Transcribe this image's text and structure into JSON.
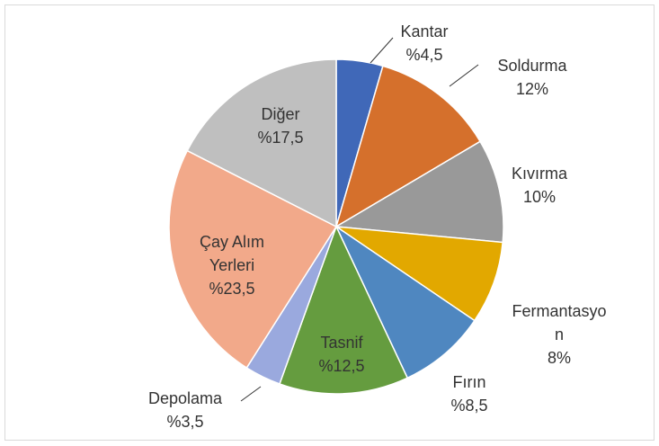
{
  "chart_data": {
    "type": "pie",
    "categories": [
      "Kantar",
      "Soldurma",
      "Kıvırma",
      "Fermantasyon",
      "Fırın",
      "Tasnif",
      "Depolama",
      "Çay Alım Yerleri",
      "Diğer"
    ],
    "values": [
      4.5,
      12,
      10,
      8,
      8.5,
      12.5,
      3.5,
      23.5,
      17.5
    ],
    "value_labels": [
      "%4,5",
      "12%",
      "10%",
      "8%",
      "%8,5",
      "%12,5",
      "%3,5",
      "%23,5",
      "%17,5"
    ],
    "colors": [
      "#4068b8",
      "#d5702c",
      "#999999",
      "#e2a800",
      "#4f87c0",
      "#659c3f",
      "#9aa9de",
      "#f2a98a",
      "#bfbfbf"
    ]
  }
}
